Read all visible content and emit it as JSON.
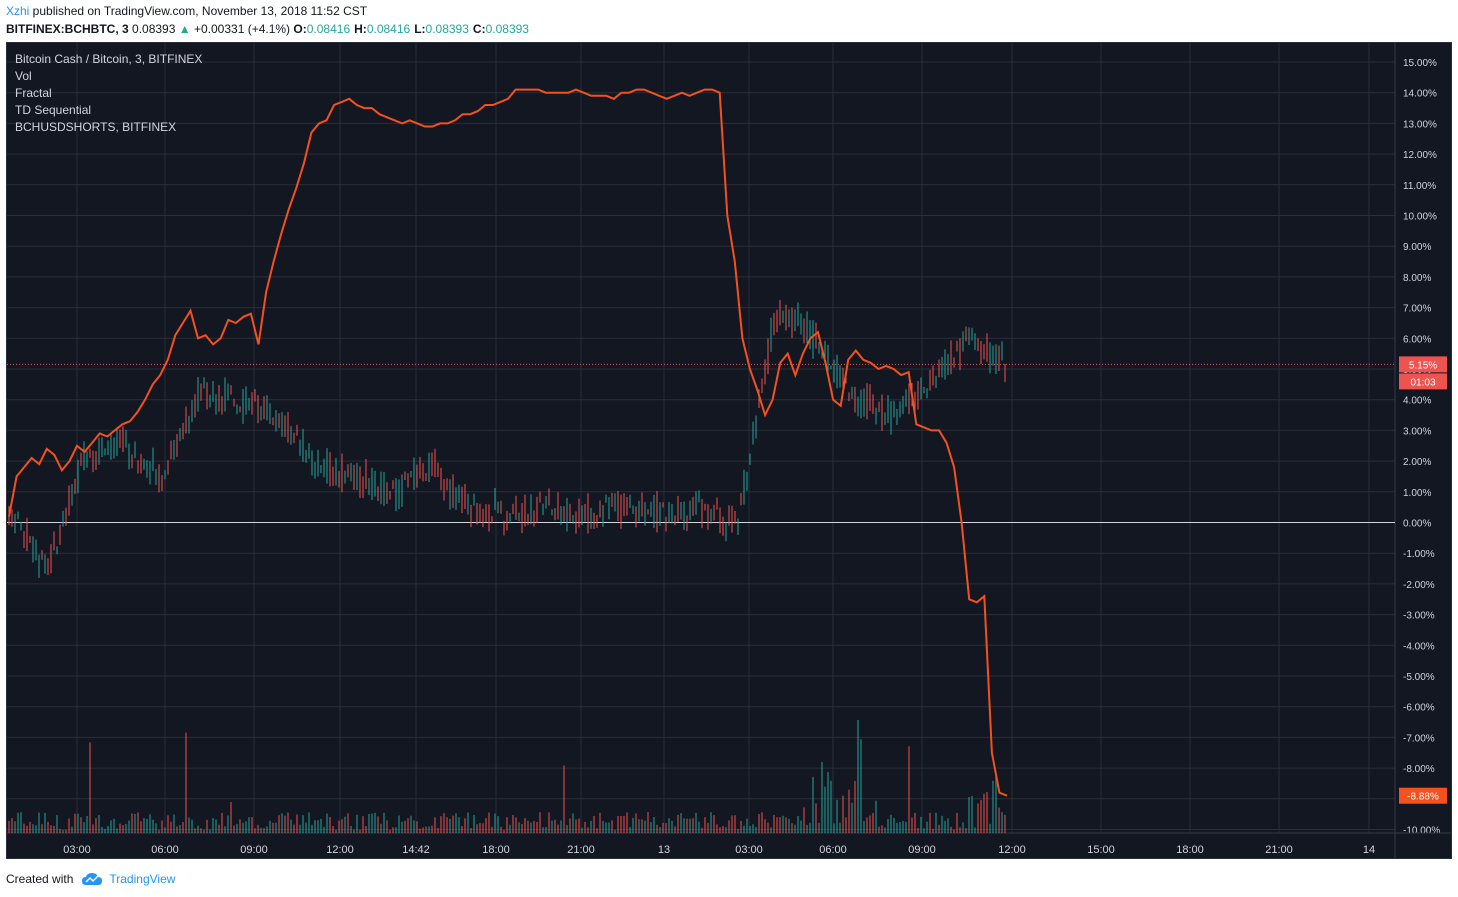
{
  "publish": {
    "author": "Xzhi",
    "text": " published on TradingView.com, November 13, 2018 11:52 CST"
  },
  "symbol": {
    "ticker": "BITFINEX:BCHBTC, 3",
    "last": "0.08393",
    "change": "+0.00331 (+4.1%)",
    "o_label": "O:",
    "o": "0.08416",
    "h_label": "H:",
    "h": "0.08416",
    "l_label": "L:",
    "l": "0.08393",
    "c_label": "C:",
    "c": "0.08393"
  },
  "legend": [
    "Bitcoin Cash / Bitcoin, 3, BITFINEX",
    "Vol",
    "Fractal",
    "TD Sequential",
    "BCHUSDSHORTS, BITFINEX"
  ],
  "footer": {
    "created": "Created with",
    "brand": "TradingView"
  },
  "colors": {
    "background": "#131722",
    "grid": "#2a2e39",
    "shorts_line": "#f4511e",
    "candle_up": "#26a69a",
    "candle_down": "#ef5350",
    "td_green": "#26a69a",
    "td_red": "#ef5350",
    "price_line": "#ef5350",
    "zero_line": "#d1d4dc"
  },
  "chart_data": {
    "type": "line",
    "y_axis_ticks": [
      "15.00%",
      "14.00%",
      "13.00%",
      "12.00%",
      "11.00%",
      "10.00%",
      "9.00%",
      "8.00%",
      "7.00%",
      "6.00%",
      "5.00%",
      "4.00%",
      "3.00%",
      "2.00%",
      "1.00%",
      "0.00%",
      "-1.00%",
      "-2.00%",
      "-3.00%",
      "-4.00%",
      "-5.00%",
      "-6.00%",
      "-7.00%",
      "-8.00%",
      "-9.00%",
      "-10.00%"
    ],
    "ylim": [
      -10,
      15
    ],
    "x_axis_ticks": [
      "03:00",
      "06:00",
      "09:00",
      "12:00",
      "14:42",
      "18:00",
      "21:00",
      "13",
      "03:00",
      "06:00",
      "09:00",
      "12:00",
      "15:00",
      "18:00",
      "21:00",
      "14"
    ],
    "price_badge": "5.15%",
    "countdown_badge": "01:03",
    "shorts_badge": "-8.88%",
    "price_level": 5.15,
    "series": [
      {
        "name": "BCHUSDSHORTS, BITFINEX",
        "values": [
          0.2,
          1.5,
          1.8,
          2.1,
          1.9,
          2.4,
          2.2,
          1.7,
          2.0,
          2.5,
          2.3,
          2.6,
          2.9,
          2.8,
          3.0,
          3.2,
          3.3,
          3.6,
          4.0,
          4.5,
          4.8,
          5.3,
          6.1,
          6.5,
          6.9,
          6.0,
          6.1,
          5.8,
          6.0,
          6.6,
          6.5,
          6.7,
          6.8,
          5.8,
          7.5,
          8.5,
          9.4,
          10.2,
          10.9,
          11.7,
          12.7,
          13.0,
          13.1,
          13.6,
          13.7,
          13.8,
          13.6,
          13.5,
          13.5,
          13.3,
          13.2,
          13.1,
          13.0,
          13.1,
          13.0,
          12.9,
          12.9,
          13.0,
          13.0,
          13.1,
          13.3,
          13.3,
          13.4,
          13.6,
          13.6,
          13.7,
          13.8,
          14.1,
          14.1,
          14.1,
          14.1,
          14.0,
          14.0,
          14.0,
          14.0,
          14.1,
          14.0,
          13.9,
          13.9,
          13.9,
          13.8,
          14.0,
          14.0,
          14.1,
          14.1,
          14.0,
          13.9,
          13.8,
          13.9,
          14.0,
          13.9,
          14.0,
          14.1,
          14.1,
          14.0,
          10.0,
          8.5,
          6.0,
          5.0,
          4.3,
          3.5,
          4.0,
          5.2,
          5.5,
          4.8,
          5.5,
          6.0,
          6.2,
          5.2,
          4.0,
          3.8,
          5.3,
          5.6,
          5.3,
          5.2,
          5.0,
          5.1,
          5.0,
          4.8,
          4.9,
          3.2,
          3.1,
          3.0,
          3.0,
          2.6,
          1.8,
          0.0,
          -2.5,
          -2.6,
          -2.4,
          -7.5,
          -8.8,
          -8.9
        ]
      }
    ]
  }
}
